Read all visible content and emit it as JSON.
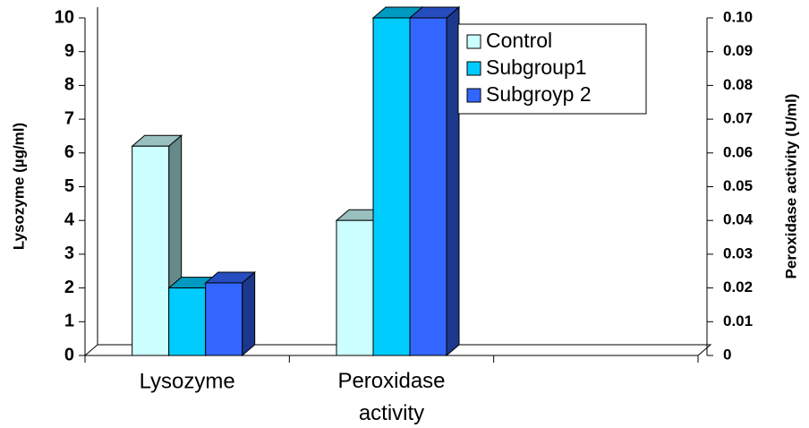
{
  "chart_data": {
    "type": "bar3d",
    "categories": [
      "Lysozyme",
      "Peroxidase activity",
      null
    ],
    "category_axis": [
      "y",
      "y2",
      "y"
    ],
    "series": [
      {
        "name": "Control",
        "color": "#ccffff",
        "values": [
          6.2,
          0.04,
          null
        ]
      },
      {
        "name": "Subgroup1",
        "color": "#00ccff",
        "values": [
          2.0,
          0.1,
          null
        ]
      },
      {
        "name": "Subgroyp 2",
        "color": "#3366ff",
        "values": [
          2.15,
          0.1,
          null
        ]
      }
    ],
    "ylabel": "Lysozyme (µg/ml)",
    "y2label": "Peroxidase activity  (U/ml)",
    "ylim": [
      0,
      10
    ],
    "yticks": [
      0,
      1,
      2,
      3,
      4,
      5,
      6,
      7,
      8,
      9,
      10
    ],
    "y2lim": [
      0,
      0.1
    ],
    "y2ticks": [
      0,
      0.01,
      0.02,
      0.03,
      0.04,
      0.05,
      0.06,
      0.07,
      0.08,
      0.09,
      {
        "value": 0.1,
        "label": "0.10"
      }
    ]
  }
}
